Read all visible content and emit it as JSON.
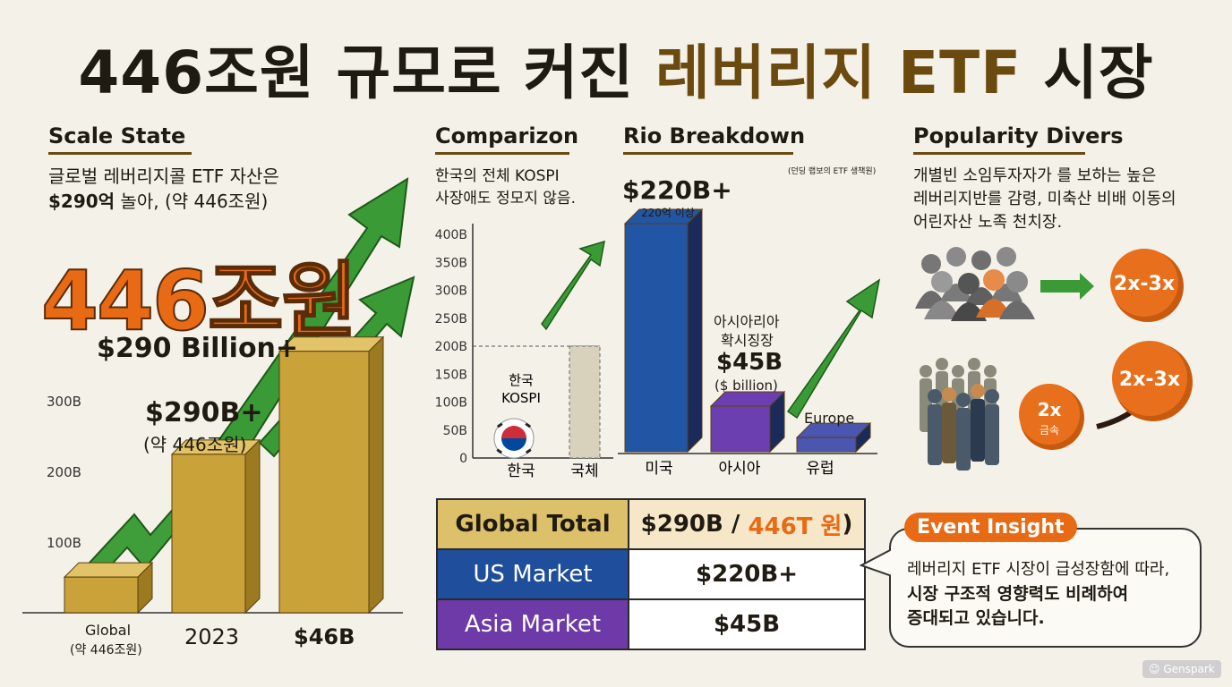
{
  "title": {
    "part1": "446조원 규모로 커진 ",
    "part2": "레버리지 ETF",
    "part3": " 시장"
  },
  "scale": {
    "heading": "Scale State",
    "desc1": "글로벌 레버리지콜 ETF 자산은",
    "desc2_bold": "$290억",
    "desc2_rest": " 놀아, (약 446조원)",
    "big": "446조원",
    "billion": "$290 Billion+",
    "callout_value": "$290B+",
    "callout_sub": "(약 446조원)",
    "xlabels": [
      "Global",
      "2023",
      "$46B"
    ],
    "xlabel_sub": "(약 446조원)"
  },
  "comparison": {
    "heading": "Comparizon",
    "desc1": "한국의 전체 KOSPI",
    "desc2": "사장애도 정모지 않음.",
    "bar_label1": "한국",
    "bar_label2": "KOSPI"
  },
  "breakdown": {
    "heading": "Rio Breakdown",
    "note": "(던딩 랩보의 ETF 생책원)",
    "us_value": "$220B+",
    "us_sub": "220억 이상",
    "asia_l1": "아시아리아",
    "asia_l2": "확시징장",
    "asia_value": "$45B",
    "asia_sub": "($ billion)",
    "europe": "Europe"
  },
  "popularity": {
    "heading": "Popularity Divers",
    "desc1": "개별빈 소임투자자가 를 보하는 높은",
    "desc2": "레버리지반를 감령, 미축산 비배 이동의",
    "desc3": "어린자산 노족 천치장.",
    "badge1": "2x-3x",
    "badge2": "2x-3x",
    "badge3_top": "2x",
    "badge3_sub": "금속"
  },
  "table": {
    "rows": [
      {
        "label": "Global Total",
        "value_main": "$290B / ",
        "value_accent": "446T 원",
        "value_end": ")"
      },
      {
        "label": "US Market",
        "value_main": "$220B+"
      },
      {
        "label": "Asia Market",
        "value_main": "$45B"
      }
    ],
    "colors": {
      "header_bg": "#dcc06a",
      "header_value_bg": "#f6e7c8",
      "us_bg": "#1f4e9c",
      "asia_bg": "#6d3aa8"
    }
  },
  "insight": {
    "tag": "Event Insight",
    "line1": "레버리지 ETF 시장이 급성장함에 따라,",
    "line2": "시장 구조적 영향력도 비례하여",
    "line3": "증대되고 있습니다."
  },
  "watermark": "Genspark",
  "chart_data": [
    {
      "type": "bar",
      "title": "Scale State",
      "categories": [
        "Global",
        "2023",
        "$46B"
      ],
      "values": [
        45,
        200,
        330
      ],
      "yticks": [
        "100B",
        "200B",
        "300B"
      ],
      "ylim": [
        0,
        350
      ],
      "grid": false
    },
    {
      "type": "bar",
      "title": "Comparizon",
      "categories": [
        "한국",
        "국체"
      ],
      "values": [
        0,
        200
      ],
      "yticks": [
        "0",
        "50B",
        "100B",
        "150B",
        "200B",
        "250B",
        "300B",
        "350B",
        "400B"
      ],
      "ylim": [
        0,
        400
      ],
      "reference_line": 200
    },
    {
      "type": "bar",
      "title": "Rio Breakdown",
      "categories": [
        "미국",
        "아시아",
        "유럽"
      ],
      "values": [
        400,
        80,
        25
      ],
      "colors": [
        "#2255a4",
        "#6b3fb0",
        "#4a56b0"
      ]
    }
  ]
}
